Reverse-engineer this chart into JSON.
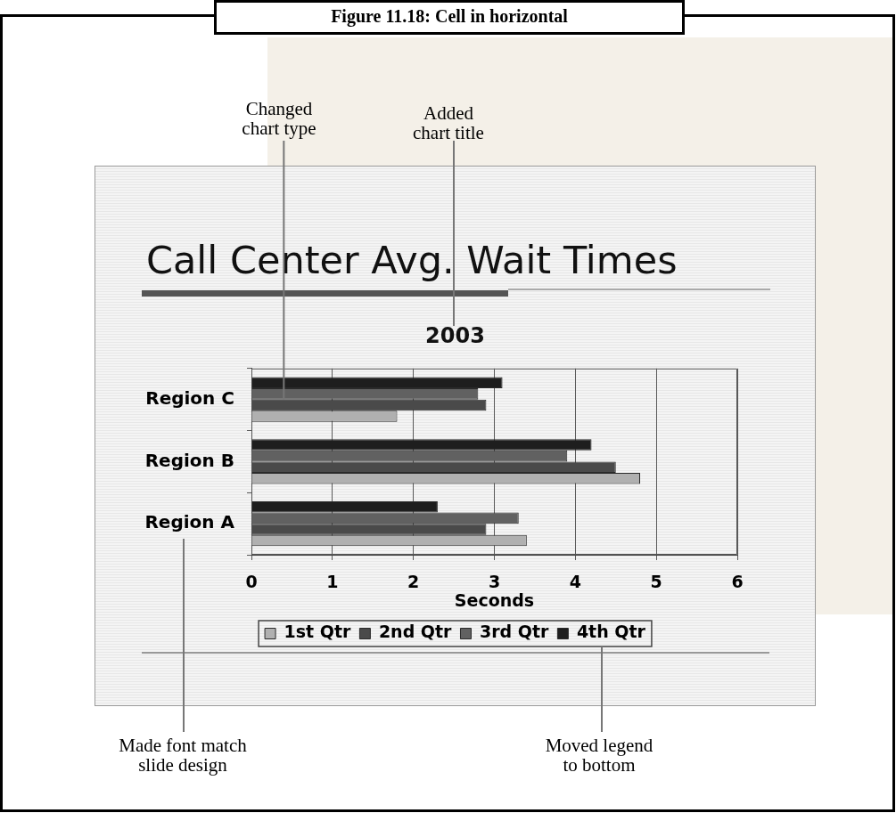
{
  "chart_data": {
    "type": "bar",
    "orientation": "horizontal",
    "title": "Call Center Avg. Wait Times",
    "subtitle": "2003",
    "xlabel": "Seconds",
    "categories": [
      "Region C",
      "Region B",
      "Region A"
    ],
    "series": [
      {
        "name": "1st Qtr",
        "color": "#b0b0b0",
        "values": [
          1.8,
          4.8,
          3.4
        ]
      },
      {
        "name": "2nd Qtr",
        "color": "#4a4a4a",
        "values": [
          2.9,
          4.5,
          2.9
        ]
      },
      {
        "name": "3rd Qtr",
        "color": "#616161",
        "values": [
          2.8,
          3.9,
          3.3
        ]
      },
      {
        "name": "4th Qtr",
        "color": "#1e1e1e",
        "values": [
          3.1,
          4.2,
          2.3
        ]
      }
    ],
    "xlim": [
      0,
      6
    ],
    "xticks": [
      0,
      1,
      2,
      3,
      4,
      5,
      6
    ],
    "grid": "x",
    "legend": "bottom",
    "annotations": [
      "Figure 11.18: Cell in horizontal",
      {
        "text": "Changed chart type",
        "x": 0.4,
        "y": "Region C"
      },
      "Added chart title",
      "Made font match slide design",
      "Moved legend to bottom"
    ]
  }
}
